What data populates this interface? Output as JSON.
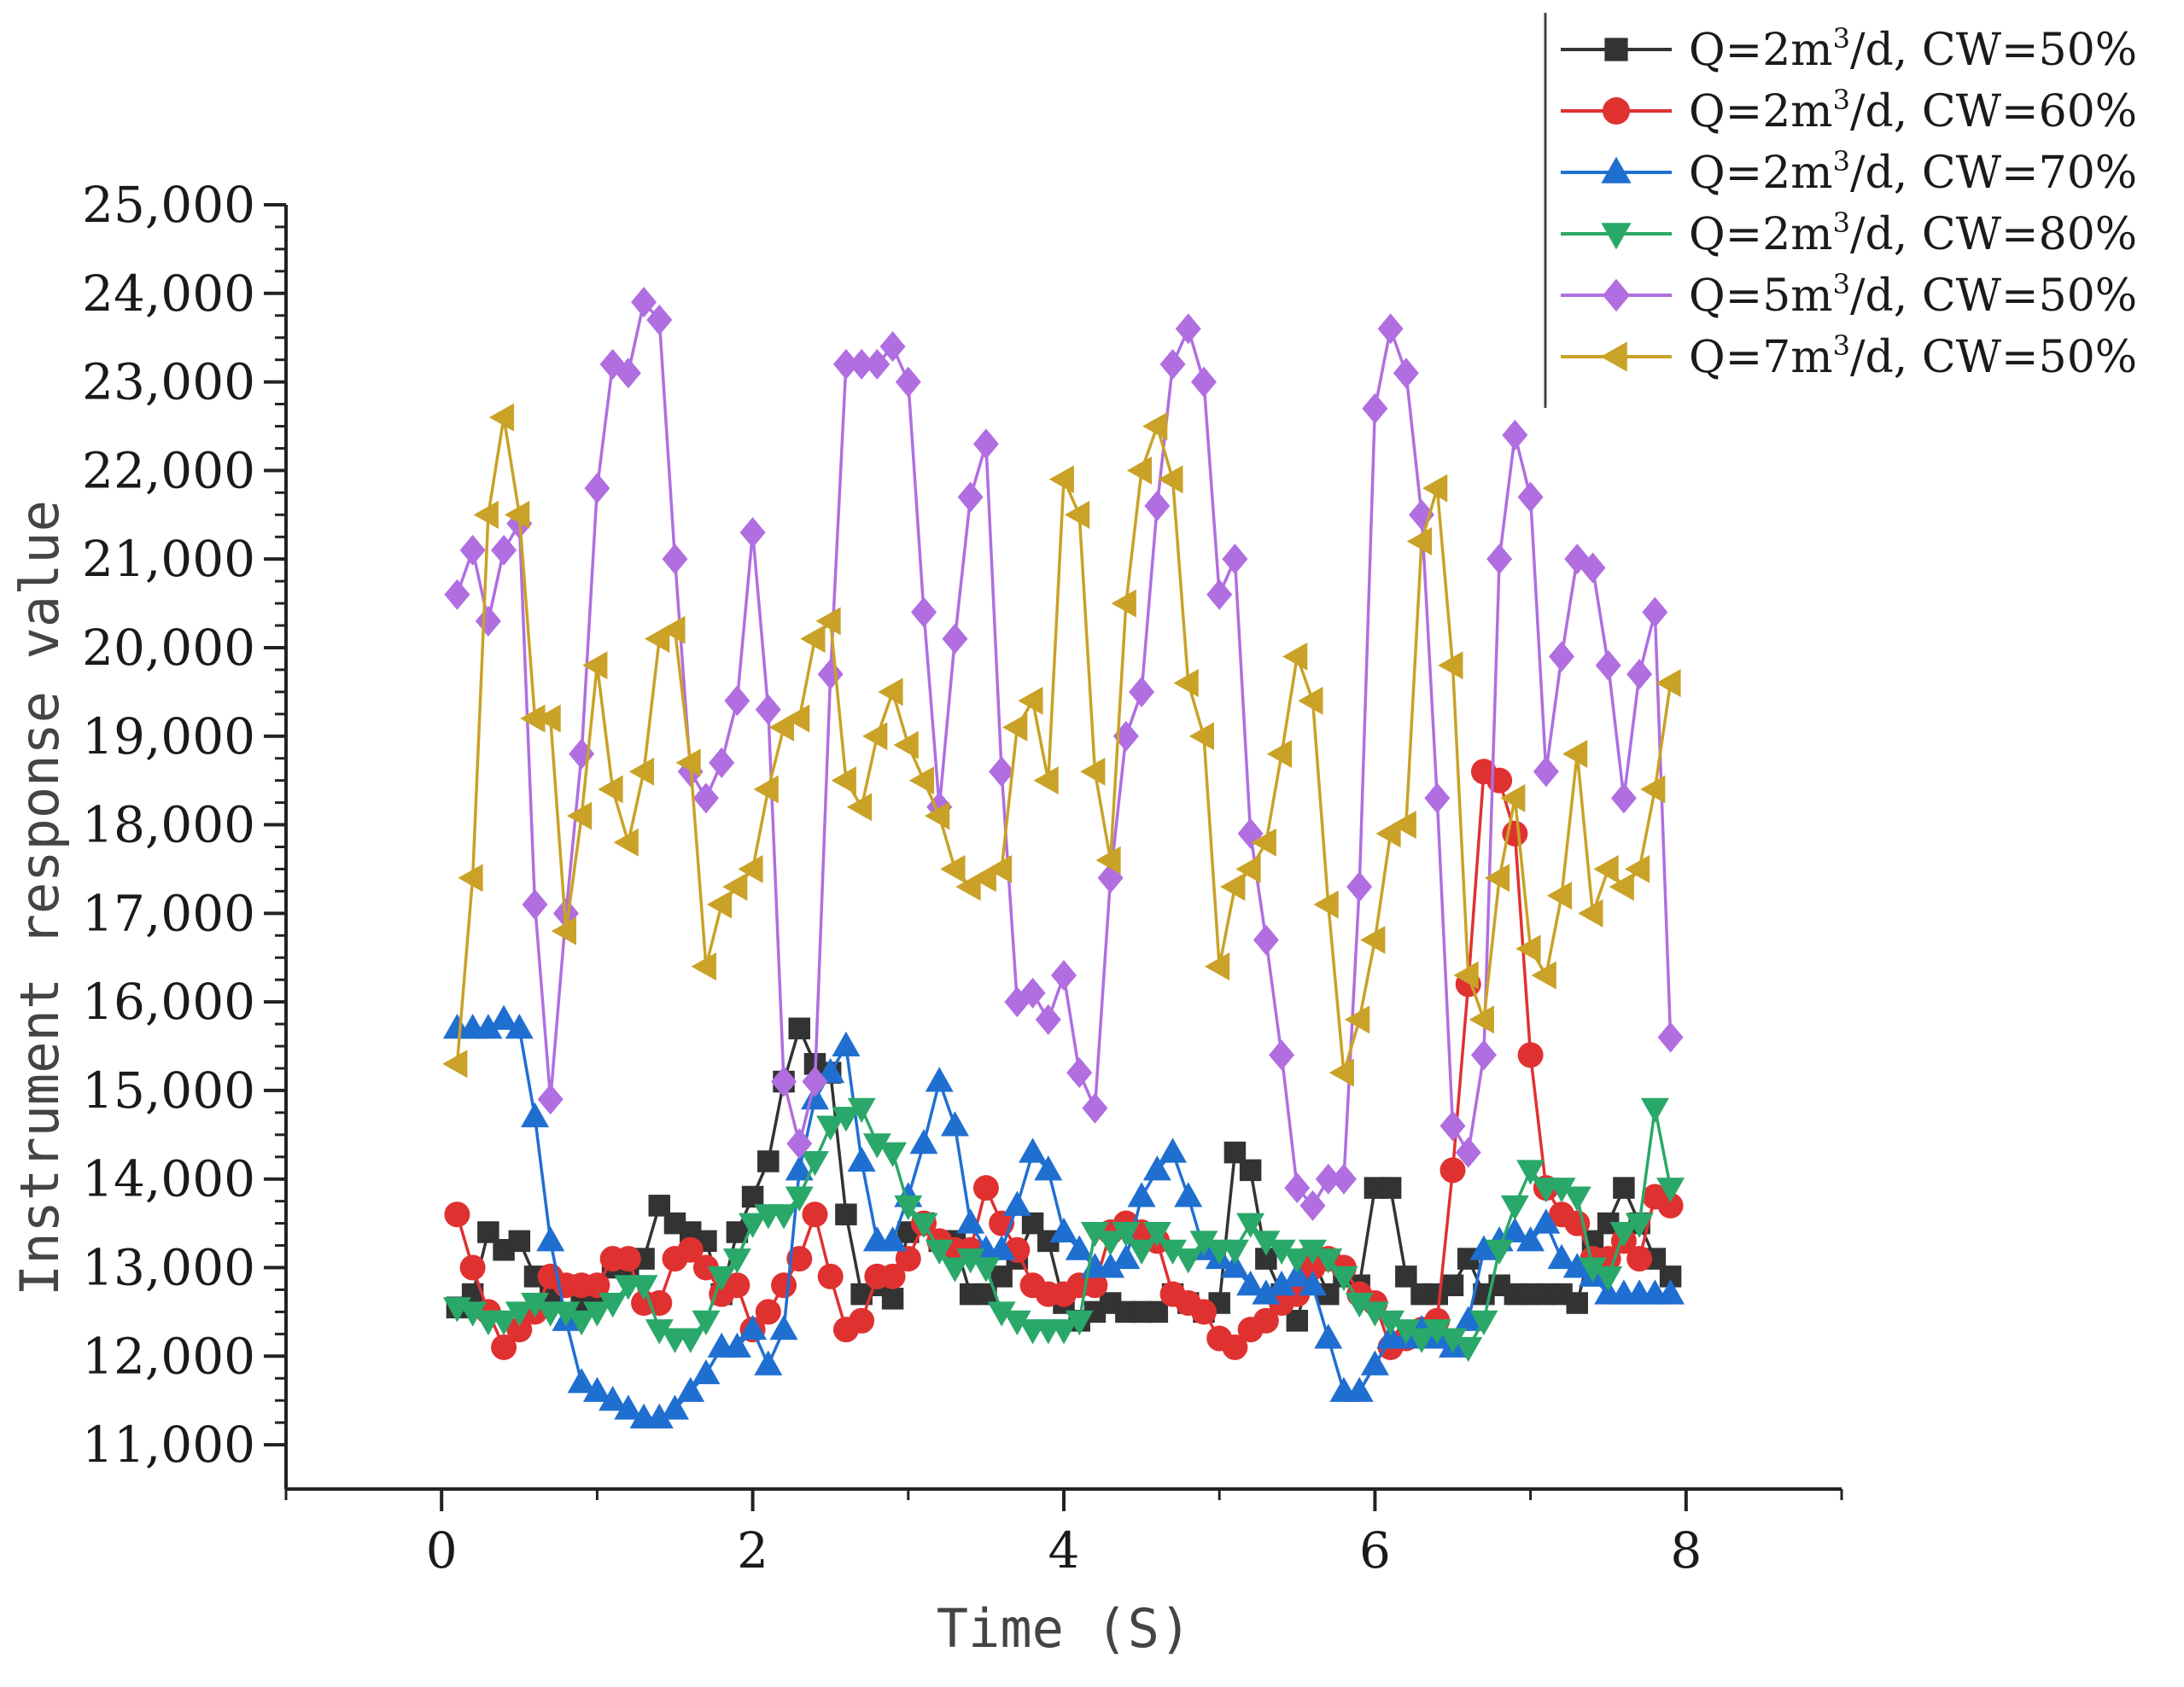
{
  "chart_data": {
    "type": "line",
    "title": "",
    "xlabel": "Time (S)",
    "ylabel": "Instrument response value",
    "xlim": [
      -1,
      9
    ],
    "ylim": [
      10500,
      25000
    ],
    "x_ticks": [
      0,
      2,
      4,
      6,
      8
    ],
    "x_tick_labels": [
      "0",
      "2",
      "4",
      "6",
      "8"
    ],
    "y_ticks": [
      11000,
      12000,
      13000,
      14000,
      15000,
      16000,
      17000,
      18000,
      19000,
      20000,
      21000,
      22000,
      23000,
      24000,
      25000
    ],
    "y_tick_labels": [
      "11,000",
      "12,000",
      "13,000",
      "14,000",
      "15,000",
      "16,000",
      "17,000",
      "18,000",
      "19,000",
      "20,000",
      "21,000",
      "22,000",
      "23,000",
      "24,000",
      "25,000"
    ],
    "legend_position": "top-right",
    "x": [
      0.1,
      0.2,
      0.3,
      0.4,
      0.5,
      0.6,
      0.7,
      0.8,
      0.9,
      1.0,
      1.1,
      1.2,
      1.3,
      1.4,
      1.5,
      1.6,
      1.7,
      1.8,
      1.9,
      2.0,
      2.1,
      2.2,
      2.3,
      2.4,
      2.5,
      2.6,
      2.7,
      2.8,
      2.9,
      3.0,
      3.1,
      3.2,
      3.3,
      3.4,
      3.5,
      3.6,
      3.7,
      3.8,
      3.9,
      4.0,
      4.1,
      4.2,
      4.3,
      4.4,
      4.5,
      4.6,
      4.7,
      4.8,
      4.9,
      5.0,
      5.1,
      5.2,
      5.3,
      5.4,
      5.5,
      5.6,
      5.7,
      5.8,
      5.9,
      6.0,
      6.1,
      6.2,
      6.3,
      6.4,
      6.5,
      6.6,
      6.7,
      6.8,
      6.9,
      7.0,
      7.1,
      7.2,
      7.3,
      7.4,
      7.5,
      7.6,
      7.7,
      7.8,
      7.9
    ],
    "series": [
      {
        "name_prefix": "Q=2m",
        "name_sup": "3",
        "name_suffix": "/d,  CW=50%",
        "color": "#333333",
        "marker": "square",
        "values": [
          12550,
          12700,
          13400,
          13200,
          13300,
          12900,
          12700,
          12800,
          12600,
          12700,
          13000,
          13000,
          13100,
          13700,
          13500,
          13400,
          13300,
          12700,
          13400,
          13800,
          14200,
          15100,
          15700,
          15300,
          15200,
          13600,
          12700,
          12800,
          12650,
          13400,
          13500,
          13300,
          13300,
          12700,
          12700,
          12900,
          13100,
          13500,
          13300,
          12600,
          12400,
          12500,
          12600,
          12500,
          12500,
          12500,
          12700,
          12600,
          12500,
          12600,
          14300,
          14100,
          13100,
          12700,
          12400,
          13100,
          12700,
          12900,
          12800,
          13900,
          13900,
          12900,
          12700,
          12700,
          12800,
          13100,
          12700,
          12800,
          12700,
          12700,
          12700,
          12700,
          12600,
          13300,
          13500,
          13900,
          13500,
          13100,
          12900
        ]
      },
      {
        "name_prefix": "Q=2m",
        "name_sup": "3",
        "name_suffix": "/d,  CW=60%",
        "color": "#e03131",
        "marker": "circle",
        "values": [
          13600,
          13000,
          12500,
          12100,
          12300,
          12500,
          12900,
          12800,
          12800,
          12800,
          13100,
          13100,
          12600,
          12600,
          13100,
          13200,
          13000,
          12700,
          12800,
          12300,
          12500,
          12800,
          13100,
          13600,
          12900,
          12300,
          12400,
          12900,
          12900,
          13100,
          13500,
          13300,
          13200,
          13200,
          13900,
          13500,
          13200,
          12800,
          12700,
          12700,
          12800,
          12800,
          13400,
          13500,
          13400,
          13300,
          12700,
          12600,
          12500,
          12200,
          12100,
          12300,
          12400,
          12600,
          12700,
          13000,
          13100,
          13000,
          12700,
          12600,
          12100,
          12200,
          12300,
          12400,
          14100,
          16200,
          18600,
          18500,
          17900,
          15400,
          13900,
          13600,
          13500,
          13100,
          13100,
          13300,
          13100,
          13800,
          13700
        ]
      },
      {
        "name_prefix": "Q=2m",
        "name_sup": "3",
        "name_suffix": "/d,  CW=70%",
        "color": "#1f6fd1",
        "marker": "triangle-up",
        "values": [
          15700,
          15700,
          15700,
          15800,
          15700,
          14700,
          13300,
          12400,
          11700,
          11600,
          11500,
          11400,
          11300,
          11300,
          11400,
          11600,
          11800,
          12100,
          12100,
          12300,
          11900,
          12300,
          14100,
          14900,
          15200,
          15500,
          14200,
          13300,
          13300,
          13800,
          14400,
          15100,
          14600,
          13500,
          13200,
          13200,
          13700,
          14300,
          14100,
          13400,
          13200,
          13000,
          13000,
          13100,
          13800,
          14100,
          14300,
          13800,
          13200,
          13100,
          13000,
          12800,
          12700,
          12800,
          12900,
          12800,
          12200,
          11600,
          11600,
          11900,
          12200,
          12200,
          12300,
          12200,
          12100,
          12400,
          13200,
          13300,
          13400,
          13300,
          13500,
          13100,
          13000,
          12900,
          12700,
          12700,
          12700,
          12700,
          12700
        ]
      },
      {
        "name_prefix": "Q=2m",
        "name_sup": "3",
        "name_suffix": "/d,  CW=80%",
        "color": "#2aa869",
        "marker": "triangle-down",
        "values": [
          12550,
          12500,
          12400,
          12400,
          12500,
          12600,
          12500,
          12500,
          12400,
          12500,
          12600,
          12800,
          12800,
          12300,
          12200,
          12200,
          12400,
          12900,
          13100,
          13500,
          13600,
          13600,
          13800,
          14200,
          14600,
          14700,
          14800,
          14400,
          14300,
          13700,
          13500,
          13200,
          13000,
          13100,
          13000,
          12500,
          12400,
          12300,
          12300,
          12300,
          12400,
          13400,
          13300,
          13400,
          13200,
          13400,
          13200,
          13100,
          13300,
          13200,
          13200,
          13500,
          13300,
          13200,
          13100,
          13200,
          13100,
          12900,
          12600,
          12500,
          12400,
          12300,
          12200,
          12300,
          12200,
          12100,
          12400,
          13200,
          13700,
          14100,
          13900,
          13900,
          13800,
          13000,
          12900,
          13400,
          13500,
          14800,
          13900
        ]
      },
      {
        "name_prefix": "Q=5m",
        "name_sup": "3",
        "name_suffix": "/d,  CW=50%",
        "color": "#b06ee0",
        "marker": "diamond",
        "values": [
          20600,
          21100,
          20300,
          21100,
          21400,
          17100,
          14900,
          17000,
          18800,
          21800,
          23200,
          23100,
          23900,
          23700,
          21000,
          18600,
          18300,
          18700,
          19400,
          21300,
          19300,
          15100,
          14400,
          15100,
          19700,
          23200,
          23200,
          23200,
          23400,
          23000,
          20400,
          18200,
          20100,
          21700,
          22300,
          18600,
          16000,
          16100,
          15800,
          16300,
          15200,
          14800,
          17400,
          19000,
          19500,
          21600,
          23200,
          23600,
          23000,
          20600,
          21000,
          17900,
          16700,
          15400,
          13900,
          13700,
          14000,
          14000,
          17300,
          22700,
          23600,
          23100,
          21500,
          18300,
          14600,
          14300,
          15400,
          21000,
          22400,
          21700,
          18600,
          19900,
          21000,
          20900,
          19800,
          18300,
          19700,
          20400,
          15600
        ]
      },
      {
        "name_prefix": "Q=7m",
        "name_sup": "3",
        "name_suffix": "/d,  CW=50%",
        "color": "#c9a227",
        "marker": "triangle-left",
        "values": [
          15300,
          17400,
          21500,
          22600,
          21500,
          19200,
          19200,
          16800,
          18100,
          19800,
          18400,
          17800,
          18600,
          20100,
          20200,
          18700,
          16400,
          17100,
          17300,
          17500,
          18400,
          19100,
          19200,
          20100,
          20300,
          18500,
          18200,
          19000,
          19500,
          18900,
          18500,
          18100,
          17500,
          17300,
          17400,
          17500,
          19100,
          19400,
          18500,
          21900,
          21500,
          18600,
          17600,
          20500,
          22000,
          22500,
          21900,
          19600,
          19000,
          16400,
          17300,
          17500,
          17800,
          18800,
          19900,
          19400,
          17100,
          15200,
          15800,
          16700,
          17900,
          18000,
          21200,
          21800,
          19800,
          16300,
          15800,
          17400,
          18300,
          16600,
          16300,
          17200,
          18800,
          17000,
          17500,
          17300,
          17500,
          18400,
          19600
        ]
      }
    ]
  }
}
